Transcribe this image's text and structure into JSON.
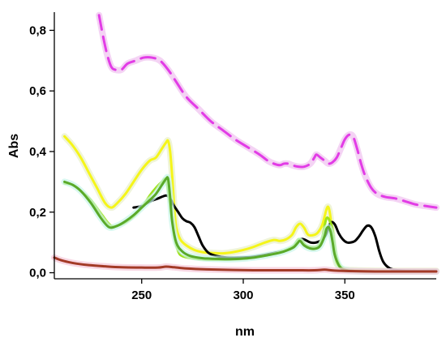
{
  "chart_data": {
    "type": "line",
    "xlabel": "nm",
    "ylabel": "Abs",
    "xlim": [
      207,
      395
    ],
    "ylim": [
      -0.02,
      0.86
    ],
    "xticks": [
      250,
      300,
      350
    ],
    "yticks": [
      0.0,
      0.2,
      0.4,
      0.6,
      0.8
    ],
    "ytick_labels": [
      "0,0",
      "0,2",
      "0,4",
      "0,6",
      "0,8"
    ],
    "grid": false,
    "legend": "none",
    "series": [
      {
        "color": "#e23ce6",
        "dash": "dashed",
        "glow": "#f0c0f0",
        "x": [
          229,
          231,
          233,
          235,
          237,
          240,
          243,
          247,
          251,
          255,
          259,
          263,
          267,
          272,
          278,
          284,
          290,
          296,
          302,
          308,
          312,
          315,
          318,
          320,
          322,
          324,
          327,
          330,
          333,
          335,
          336,
          338,
          340,
          342,
          344,
          346,
          348,
          350,
          352,
          354,
          356,
          358,
          360,
          363,
          366,
          370,
          375,
          380,
          385,
          390,
          395
        ],
        "y": [
          0.85,
          0.78,
          0.72,
          0.68,
          0.67,
          0.67,
          0.69,
          0.7,
          0.71,
          0.71,
          0.7,
          0.67,
          0.63,
          0.58,
          0.54,
          0.5,
          0.47,
          0.44,
          0.415,
          0.39,
          0.37,
          0.36,
          0.355,
          0.36,
          0.36,
          0.355,
          0.35,
          0.35,
          0.36,
          0.38,
          0.39,
          0.38,
          0.37,
          0.36,
          0.365,
          0.38,
          0.41,
          0.44,
          0.455,
          0.45,
          0.41,
          0.36,
          0.32,
          0.28,
          0.26,
          0.25,
          0.245,
          0.235,
          0.225,
          0.22,
          0.215
        ]
      },
      {
        "color": "#f5f51a",
        "dash": "solid",
        "glow": "#e8f0c8",
        "x": [
          212,
          216,
          220,
          224,
          228,
          232,
          235,
          238,
          242,
          246,
          250,
          254,
          257,
          260,
          262,
          263,
          264,
          265,
          266,
          267,
          269,
          272,
          276,
          280,
          285,
          290,
          295,
          300,
          305,
          310,
          315,
          318,
          321,
          324,
          326,
          328,
          330,
          332,
          335,
          337,
          339,
          341,
          342,
          343,
          344,
          345,
          346,
          348,
          350,
          355,
          360,
          370,
          380,
          395
        ],
        "y": [
          0.45,
          0.42,
          0.38,
          0.33,
          0.28,
          0.23,
          0.215,
          0.23,
          0.26,
          0.3,
          0.34,
          0.37,
          0.38,
          0.41,
          0.43,
          0.435,
          0.4,
          0.32,
          0.22,
          0.15,
          0.11,
          0.09,
          0.075,
          0.068,
          0.065,
          0.064,
          0.068,
          0.075,
          0.085,
          0.098,
          0.108,
          0.105,
          0.11,
          0.125,
          0.15,
          0.162,
          0.148,
          0.125,
          0.125,
          0.135,
          0.16,
          0.21,
          0.215,
          0.18,
          0.11,
          0.06,
          0.03,
          0.015,
          0.01,
          0.008,
          0.007,
          0.006,
          0.006,
          0.006
        ]
      },
      {
        "color": "#000000",
        "dash": "solid",
        "glow": "",
        "x": [
          246,
          250,
          254,
          258,
          262,
          264,
          266,
          268,
          270,
          272,
          274,
          276,
          278,
          280,
          283,
          287,
          292,
          298,
          304,
          310,
          315,
          320,
          323,
          326,
          328,
          330,
          333,
          336,
          339,
          341,
          343,
          345,
          347,
          349,
          351,
          353,
          355,
          357,
          359,
          361,
          363,
          365,
          367,
          369,
          372,
          376,
          382,
          395
        ],
        "y": [
          0.215,
          0.22,
          0.235,
          0.245,
          0.255,
          0.245,
          0.22,
          0.2,
          0.18,
          0.17,
          0.165,
          0.15,
          0.12,
          0.09,
          0.065,
          0.055,
          0.05,
          0.05,
          0.052,
          0.058,
          0.065,
          0.072,
          0.08,
          0.095,
          0.11,
          0.11,
          0.1,
          0.1,
          0.11,
          0.13,
          0.165,
          0.16,
          0.13,
          0.11,
          0.1,
          0.1,
          0.105,
          0.12,
          0.14,
          0.155,
          0.15,
          0.12,
          0.07,
          0.035,
          0.015,
          0.008,
          0.006,
          0.006
        ]
      },
      {
        "color": "#9ee21a",
        "dash": "solid",
        "glow": "",
        "x": [
          212,
          216,
          220,
          225,
          230,
          235,
          240,
          245,
          250,
          254,
          257,
          260,
          262,
          264,
          266,
          268,
          270,
          274,
          278,
          283,
          290,
          298,
          305,
          312,
          318,
          322,
          325,
          327,
          329,
          331,
          334,
          337,
          339,
          341,
          343,
          344,
          345,
          346,
          348,
          351,
          355,
          360,
          370,
          380,
          395
        ],
        "y": [
          0.295,
          0.29,
          0.27,
          0.24,
          0.195,
          0.155,
          0.16,
          0.18,
          0.215,
          0.255,
          0.28,
          0.3,
          0.305,
          0.22,
          0.12,
          0.07,
          0.055,
          0.048,
          0.045,
          0.043,
          0.043,
          0.045,
          0.05,
          0.058,
          0.068,
          0.078,
          0.09,
          0.11,
          0.105,
          0.09,
          0.085,
          0.09,
          0.12,
          0.18,
          0.165,
          0.14,
          0.09,
          0.05,
          0.02,
          0.01,
          0.006,
          0.005,
          0.004,
          0.004,
          0.004
        ]
      },
      {
        "color": "#5aaa2a",
        "dash": "solid",
        "glow": "#c8f5e8",
        "x": [
          212,
          216,
          220,
          225,
          230,
          234,
          238,
          242,
          246,
          250,
          254,
          257,
          260,
          262,
          263,
          264,
          265,
          267,
          270,
          274,
          280,
          286,
          292,
          298,
          305,
          312,
          318,
          322,
          325,
          327,
          328,
          330,
          333,
          336,
          338,
          340,
          341,
          342,
          343,
          344,
          345,
          347,
          349,
          352,
          356,
          362,
          370,
          380,
          395
        ],
        "y": [
          0.3,
          0.29,
          0.27,
          0.23,
          0.18,
          0.15,
          0.155,
          0.17,
          0.19,
          0.215,
          0.24,
          0.26,
          0.29,
          0.31,
          0.31,
          0.25,
          0.17,
          0.1,
          0.07,
          0.055,
          0.048,
          0.046,
          0.045,
          0.046,
          0.05,
          0.058,
          0.066,
          0.075,
          0.085,
          0.1,
          0.105,
          0.09,
          0.08,
          0.08,
          0.09,
          0.12,
          0.145,
          0.15,
          0.135,
          0.1,
          0.06,
          0.025,
          0.012,
          0.007,
          0.005,
          0.004,
          0.004,
          0.004,
          0.004
        ]
      },
      {
        "color": "#a33a26",
        "dash": "solid",
        "glow": "#f5c8d8",
        "x": [
          207,
          210,
          214,
          218,
          224,
          232,
          240,
          250,
          258,
          262,
          266,
          272,
          282,
          295,
          310,
          325,
          335,
          340,
          345,
          355,
          370,
          385,
          395
        ],
        "y": [
          0.05,
          0.042,
          0.035,
          0.03,
          0.025,
          0.021,
          0.018,
          0.017,
          0.017,
          0.02,
          0.018,
          0.014,
          0.011,
          0.009,
          0.008,
          0.008,
          0.008,
          0.01,
          0.007,
          0.005,
          0.004,
          0.004,
          0.004
        ]
      }
    ]
  }
}
